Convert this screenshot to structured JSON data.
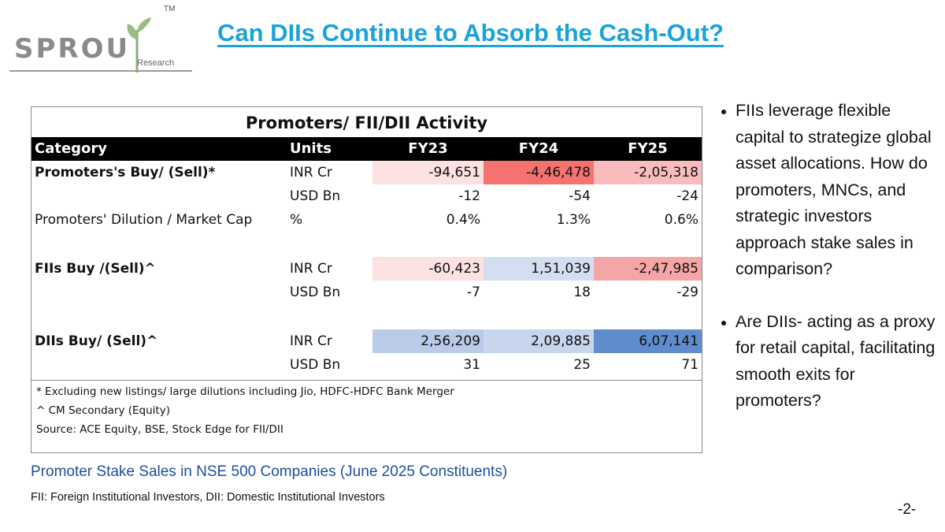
{
  "logo": {
    "word": "SPROU",
    "tm": "TM",
    "sub": "Research"
  },
  "title": "Can DIIs Continue to Absorb the Cash-Out?",
  "table": {
    "title": "Promoters/ FII/DII Activity",
    "headers": [
      "Category",
      "Units",
      "FY23",
      "FY24",
      "FY25"
    ],
    "rows": [
      {
        "category": "Promoters's Buy/ (Sell)*",
        "bold": true,
        "unit": "INR Cr",
        "values": [
          "-94,651",
          "-4,46,478",
          "-2,05,318"
        ],
        "colors": [
          "#fbe1e1",
          "#f4726f",
          "#f9bcbc"
        ]
      },
      {
        "category": "",
        "bold": false,
        "unit": "USD Bn",
        "values": [
          "-12",
          "-54",
          "-24"
        ],
        "colors": [
          "#ffffff",
          "#ffffff",
          "#ffffff"
        ]
      },
      {
        "category": "Promoters' Dilution / Market Cap",
        "bold": false,
        "unit": "%",
        "values": [
          "0.4%",
          "1.3%",
          "0.6%"
        ],
        "colors": [
          "#ffffff",
          "#ffffff",
          "#ffffff"
        ]
      },
      {
        "spacer": true
      },
      {
        "category": "FIIs Buy /(Sell)^",
        "bold": true,
        "unit": "INR Cr",
        "values": [
          "-60,423",
          "1,51,039",
          "-2,47,985"
        ],
        "colors": [
          "#fbe1e1",
          "#d3def0",
          "#f4a6a6"
        ]
      },
      {
        "category": "",
        "bold": false,
        "unit": "USD Bn",
        "values": [
          "-7",
          "18",
          "-29"
        ],
        "colors": [
          "#ffffff",
          "#ffffff",
          "#ffffff"
        ]
      },
      {
        "spacer": true
      },
      {
        "category": "DIIs Buy/ (Sell)^",
        "bold": true,
        "unit": "INR Cr",
        "values": [
          "2,56,209",
          "2,09,885",
          "6,07,141"
        ],
        "colors": [
          "#b9cbe8",
          "#c7d5ed",
          "#5f8ccd"
        ]
      },
      {
        "category": "",
        "bold": false,
        "unit": "USD Bn",
        "values": [
          "31",
          "25",
          "71"
        ],
        "colors": [
          "#ffffff",
          "#ffffff",
          "#ffffff"
        ]
      }
    ],
    "notes": [
      "* Excluding new listings/ large dilutions including Jio, HDFC-HDFC Bank Merger",
      "^ CM Secondary (Equity)",
      "Source: ACE Equity, BSE, Stock Edge for FII/DII"
    ]
  },
  "caption": "Promoter Stake Sales in NSE 500 Companies (June 2025 Constituents)",
  "footnote": "FII: Foreign Institutional Investors, DII: Domestic Institutional Investors",
  "page_number": "-2-",
  "bullets": [
    "FIIs leverage flexible capital to strategize global asset allocations. How do promoters, MNCs, and strategic investors approach stake sales in comparison?",
    "Are DIIs- acting as a proxy for retail capital, facilitating smooth exits for promoters?"
  ]
}
